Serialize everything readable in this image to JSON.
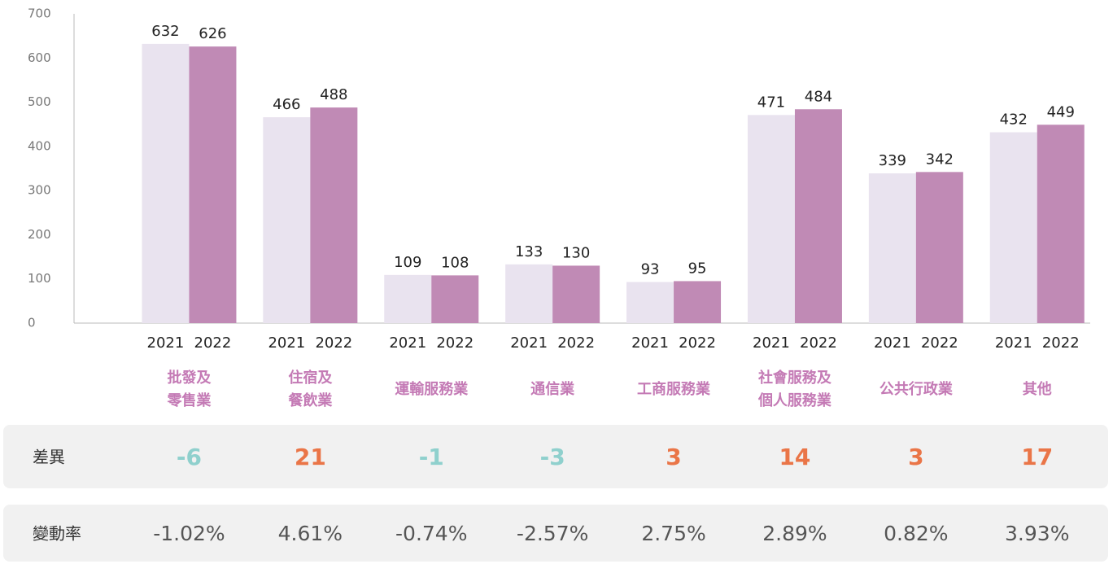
{
  "chart_data": {
    "type": "bar",
    "categories": [
      [
        "批發及",
        "零售業"
      ],
      [
        "住宿及",
        "餐飲業"
      ],
      [
        "運輸服務業"
      ],
      [
        "通信業"
      ],
      [
        "工商服務業"
      ],
      [
        "社會服務及",
        "個人服務業"
      ],
      [
        "公共行政業"
      ],
      [
        "其他"
      ]
    ],
    "series": [
      {
        "name": "2021",
        "color": "#e9e3ef",
        "values": [
          632,
          466,
          109,
          133,
          93,
          471,
          339,
          432
        ]
      },
      {
        "name": "2022",
        "color": "#c08ab5",
        "values": [
          626,
          488,
          108,
          130,
          95,
          484,
          342,
          449
        ]
      }
    ],
    "ylim": [
      0,
      700
    ],
    "yticks": [
      0,
      100,
      200,
      300,
      400,
      500,
      600,
      700
    ],
    "grid": false
  },
  "table": {
    "positive_color": "#ea7547",
    "negative_color": "#8fd0cd",
    "rows": [
      {
        "label": "差異",
        "values": [
          -6,
          21,
          -1,
          -3,
          3,
          14,
          3,
          17
        ]
      },
      {
        "label": "變動率",
        "values": [
          "-1.02%",
          "4.61%",
          "-0.74%",
          "-2.57%",
          "2.75%",
          "2.89%",
          "0.82%",
          "3.93%"
        ]
      }
    ]
  }
}
